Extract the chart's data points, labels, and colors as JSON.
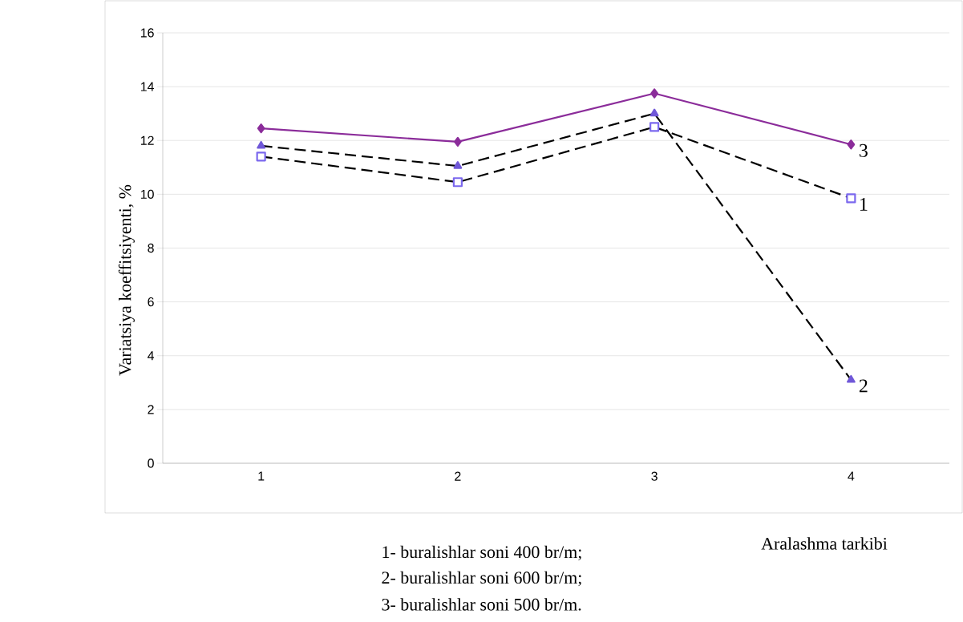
{
  "chart_data": {
    "type": "line",
    "xlabel": "Aralashma tarkibi",
    "ylabel": "Variatsiya koeffitsiyenti, %",
    "categories": [
      "1",
      "2",
      "3",
      "4"
    ],
    "series": [
      {
        "name": "1",
        "color": "#000000",
        "values": [
          11.4,
          10.45,
          12.5,
          9.85
        ],
        "marker": "square",
        "line_style": "dashed"
      },
      {
        "name": "2",
        "color": "#000000",
        "values": [
          11.8,
          11.05,
          13.0,
          3.1
        ],
        "marker": "triangle",
        "line_style": "dashed"
      },
      {
        "name": "3",
        "color": "#8b2c9a",
        "values": [
          12.45,
          11.95,
          13.75,
          11.85
        ],
        "marker": "diamond",
        "line_style": "solid"
      }
    ],
    "ylim": [
      0,
      16
    ],
    "yticks": [
      0,
      2,
      4,
      6,
      8,
      10,
      12,
      14,
      16
    ],
    "grid": "y",
    "annotations": [
      "1- buralishlar soni 400 br/m;",
      "2- buralishlar soni 600 br/m;",
      "3- buralishlar soni 500 br/m."
    ]
  }
}
